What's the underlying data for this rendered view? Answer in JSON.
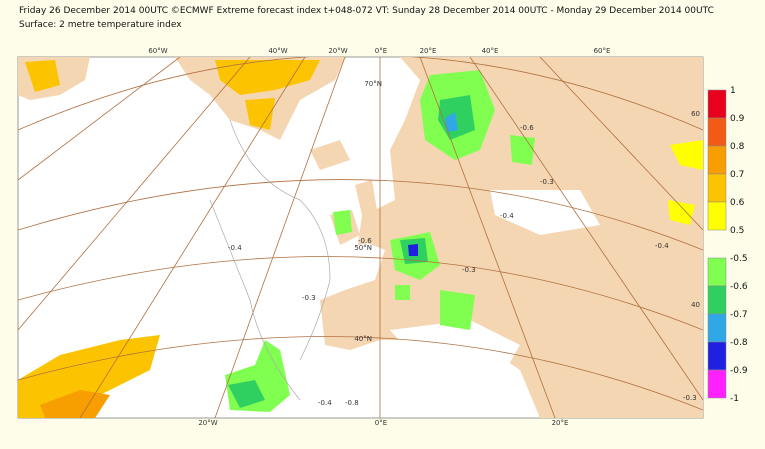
{
  "header": {
    "line1": "Friday 26 December 2014 00UTC ©ECMWF Extreme forecast index t+048-072 VT: Sunday 28 December 2014 00UTC - Monday 29 December 2014 00UTC",
    "line2": "Surface: 2 metre temperature index"
  },
  "map": {
    "top_labels": [
      "60°W",
      "40°W",
      "20°W",
      "0°E",
      "20°E",
      "40°E",
      "60°E"
    ],
    "lat_labels": [
      "70°N",
      "50°N",
      "40°N"
    ],
    "bottom_labels": [
      "20°W",
      "0°E",
      "20°E"
    ],
    "right_labels": [
      "60",
      "40"
    ],
    "contour_labels": [
      "-0.4",
      "-0.3",
      "-0.6",
      "-0.4",
      "-0.3",
      "-0.4",
      "-0.6",
      "-0.4",
      "-0.3",
      "-0.8",
      "-0.3"
    ]
  },
  "legend": {
    "positive": {
      "labels": [
        "1",
        "0.9",
        "0.8",
        "0.7",
        "0.6",
        "0.5"
      ],
      "colors": [
        "#e8001c",
        "#f35a16",
        "#f79e00",
        "#fcc400",
        "#ffff00"
      ]
    },
    "negative": {
      "labels": [
        "-0.5",
        "-0.6",
        "-0.7",
        "-0.8",
        "-0.9",
        "-1"
      ],
      "colors": [
        "#80ff50",
        "#30d060",
        "#30a8e8",
        "#2020e0",
        "#ff20ff"
      ]
    }
  }
}
